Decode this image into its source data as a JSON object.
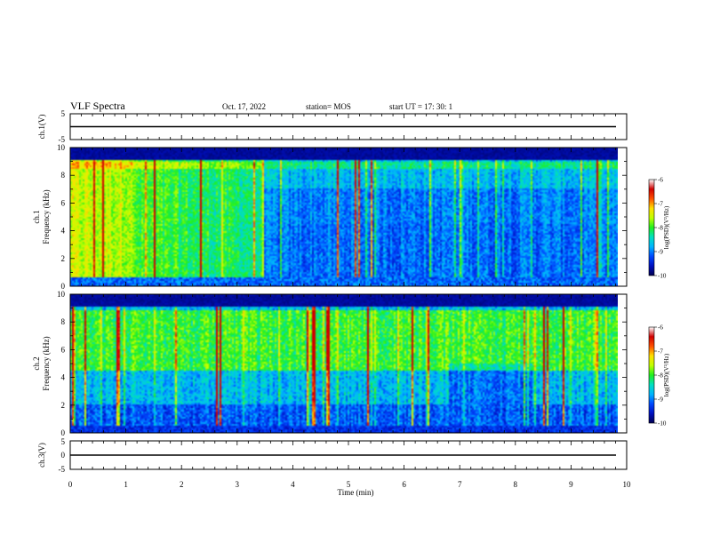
{
  "header": {
    "title": "VLF Spectra",
    "date": "Oct. 17, 2022",
    "station": "station= MOS",
    "start": "start  UT =   17: 30: 1"
  },
  "colors": {
    "colormap": [
      "#000050",
      "#0010c0",
      "#0048ff",
      "#00b4ff",
      "#00e0c0",
      "#20f020",
      "#c0ff00",
      "#ffe000",
      "#ff5000",
      "#d00000",
      "#ffffff"
    ]
  },
  "chart_data": [
    {
      "type": "line",
      "name": "ch1-waveform",
      "ylabel": "ch.1(V)",
      "ylim": [
        -5,
        5
      ],
      "yticks": [
        "5",
        "-5"
      ],
      "x": [
        0,
        9.85
      ],
      "y": [
        0,
        0
      ]
    },
    {
      "type": "heatmap",
      "name": "ch1-spectrogram",
      "ylabel": "ch.1\nFrequency  (kHz)",
      "ylim": [
        0,
        10
      ],
      "yticks": [
        "0",
        "2",
        "4",
        "6",
        "8",
        "10"
      ],
      "xlim": [
        0,
        10
      ],
      "data_extent_min": 9.85,
      "colorbar": {
        "label": "log(PSD)(V²/Hz)",
        "range": [
          -10,
          -6
        ],
        "ticks": [
          "-6",
          "-7",
          "-8",
          "-9",
          "-10"
        ]
      }
    },
    {
      "type": "heatmap",
      "name": "ch2-spectrogram",
      "ylabel": "ch.2\nFrequency  (kHz)",
      "ylim": [
        0,
        10
      ],
      "yticks": [
        "0",
        "2",
        "4",
        "6",
        "8",
        "10"
      ],
      "xlim": [
        0,
        10
      ],
      "data_extent_min": 9.85,
      "colorbar": {
        "label": "log(PSD)(V²/Hz)",
        "range": [
          -10,
          -6
        ],
        "ticks": [
          "-6",
          "-7",
          "-8",
          "-9",
          "-10"
        ]
      }
    },
    {
      "type": "line",
      "name": "ch3-waveform",
      "ylabel": "ch.3(V)",
      "ylim": [
        -5,
        5
      ],
      "yticks": [
        "5",
        "0",
        "-5"
      ],
      "x": [
        0,
        9.85
      ],
      "y": [
        0,
        0
      ]
    }
  ],
  "xaxis": {
    "label": "Time  (min)",
    "range": [
      0,
      10
    ],
    "ticks": [
      "0",
      "1",
      "2",
      "3",
      "4",
      "5",
      "6",
      "7",
      "8",
      "9",
      "10"
    ]
  }
}
